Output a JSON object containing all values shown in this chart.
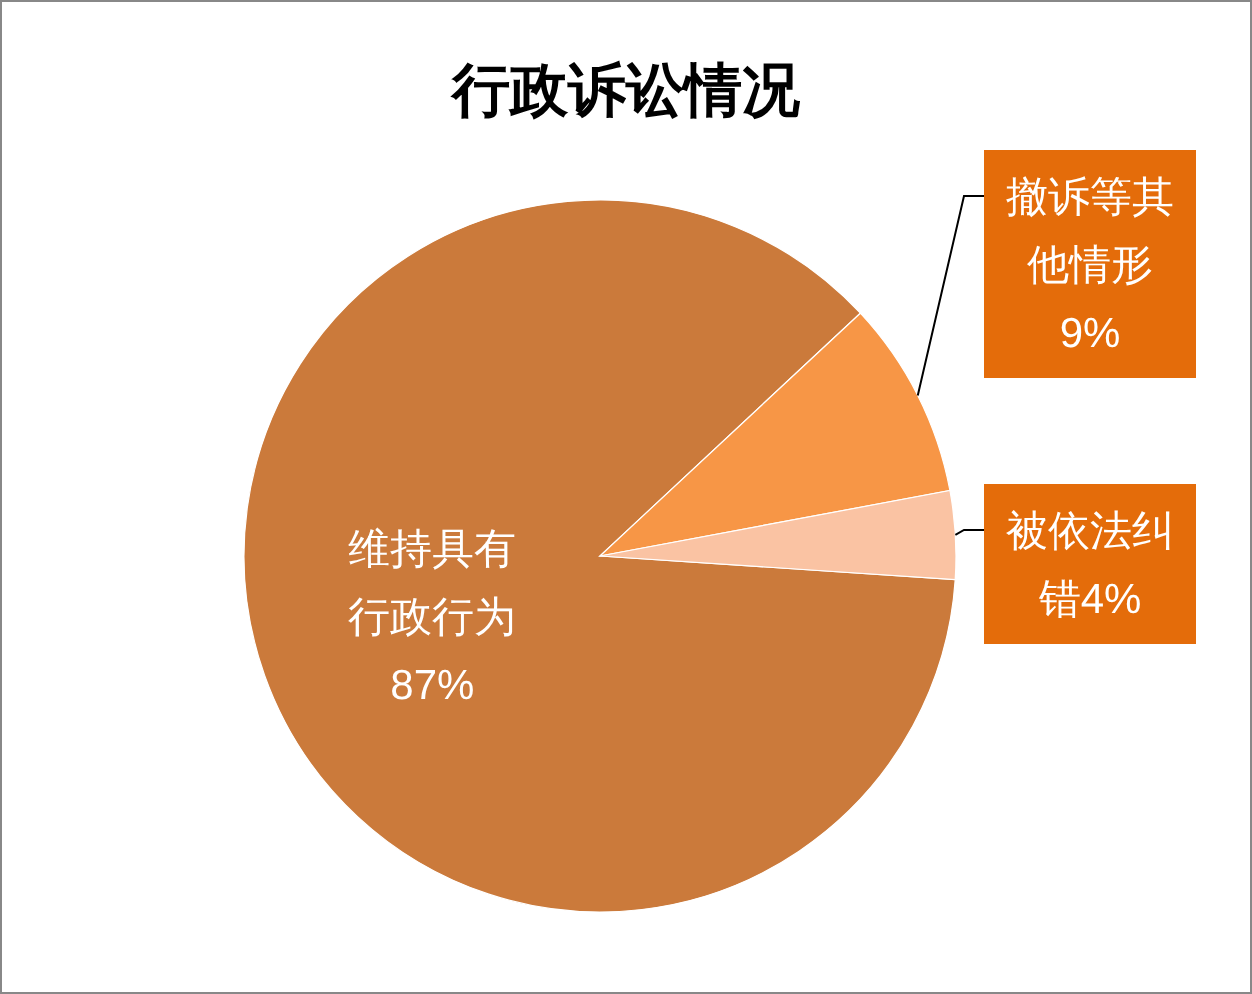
{
  "chart_data": {
    "type": "pie",
    "title": "行政诉讼情况",
    "categories": [
      "维持具有行政行为",
      "撤诉等其他情形",
      "被依法纠错"
    ],
    "values": [
      87,
      9,
      4
    ],
    "colors": [
      "#cb7a3b",
      "#f79646",
      "#fac3a3"
    ],
    "value_labels": [
      "87%",
      "9%",
      "4%"
    ]
  }
}
